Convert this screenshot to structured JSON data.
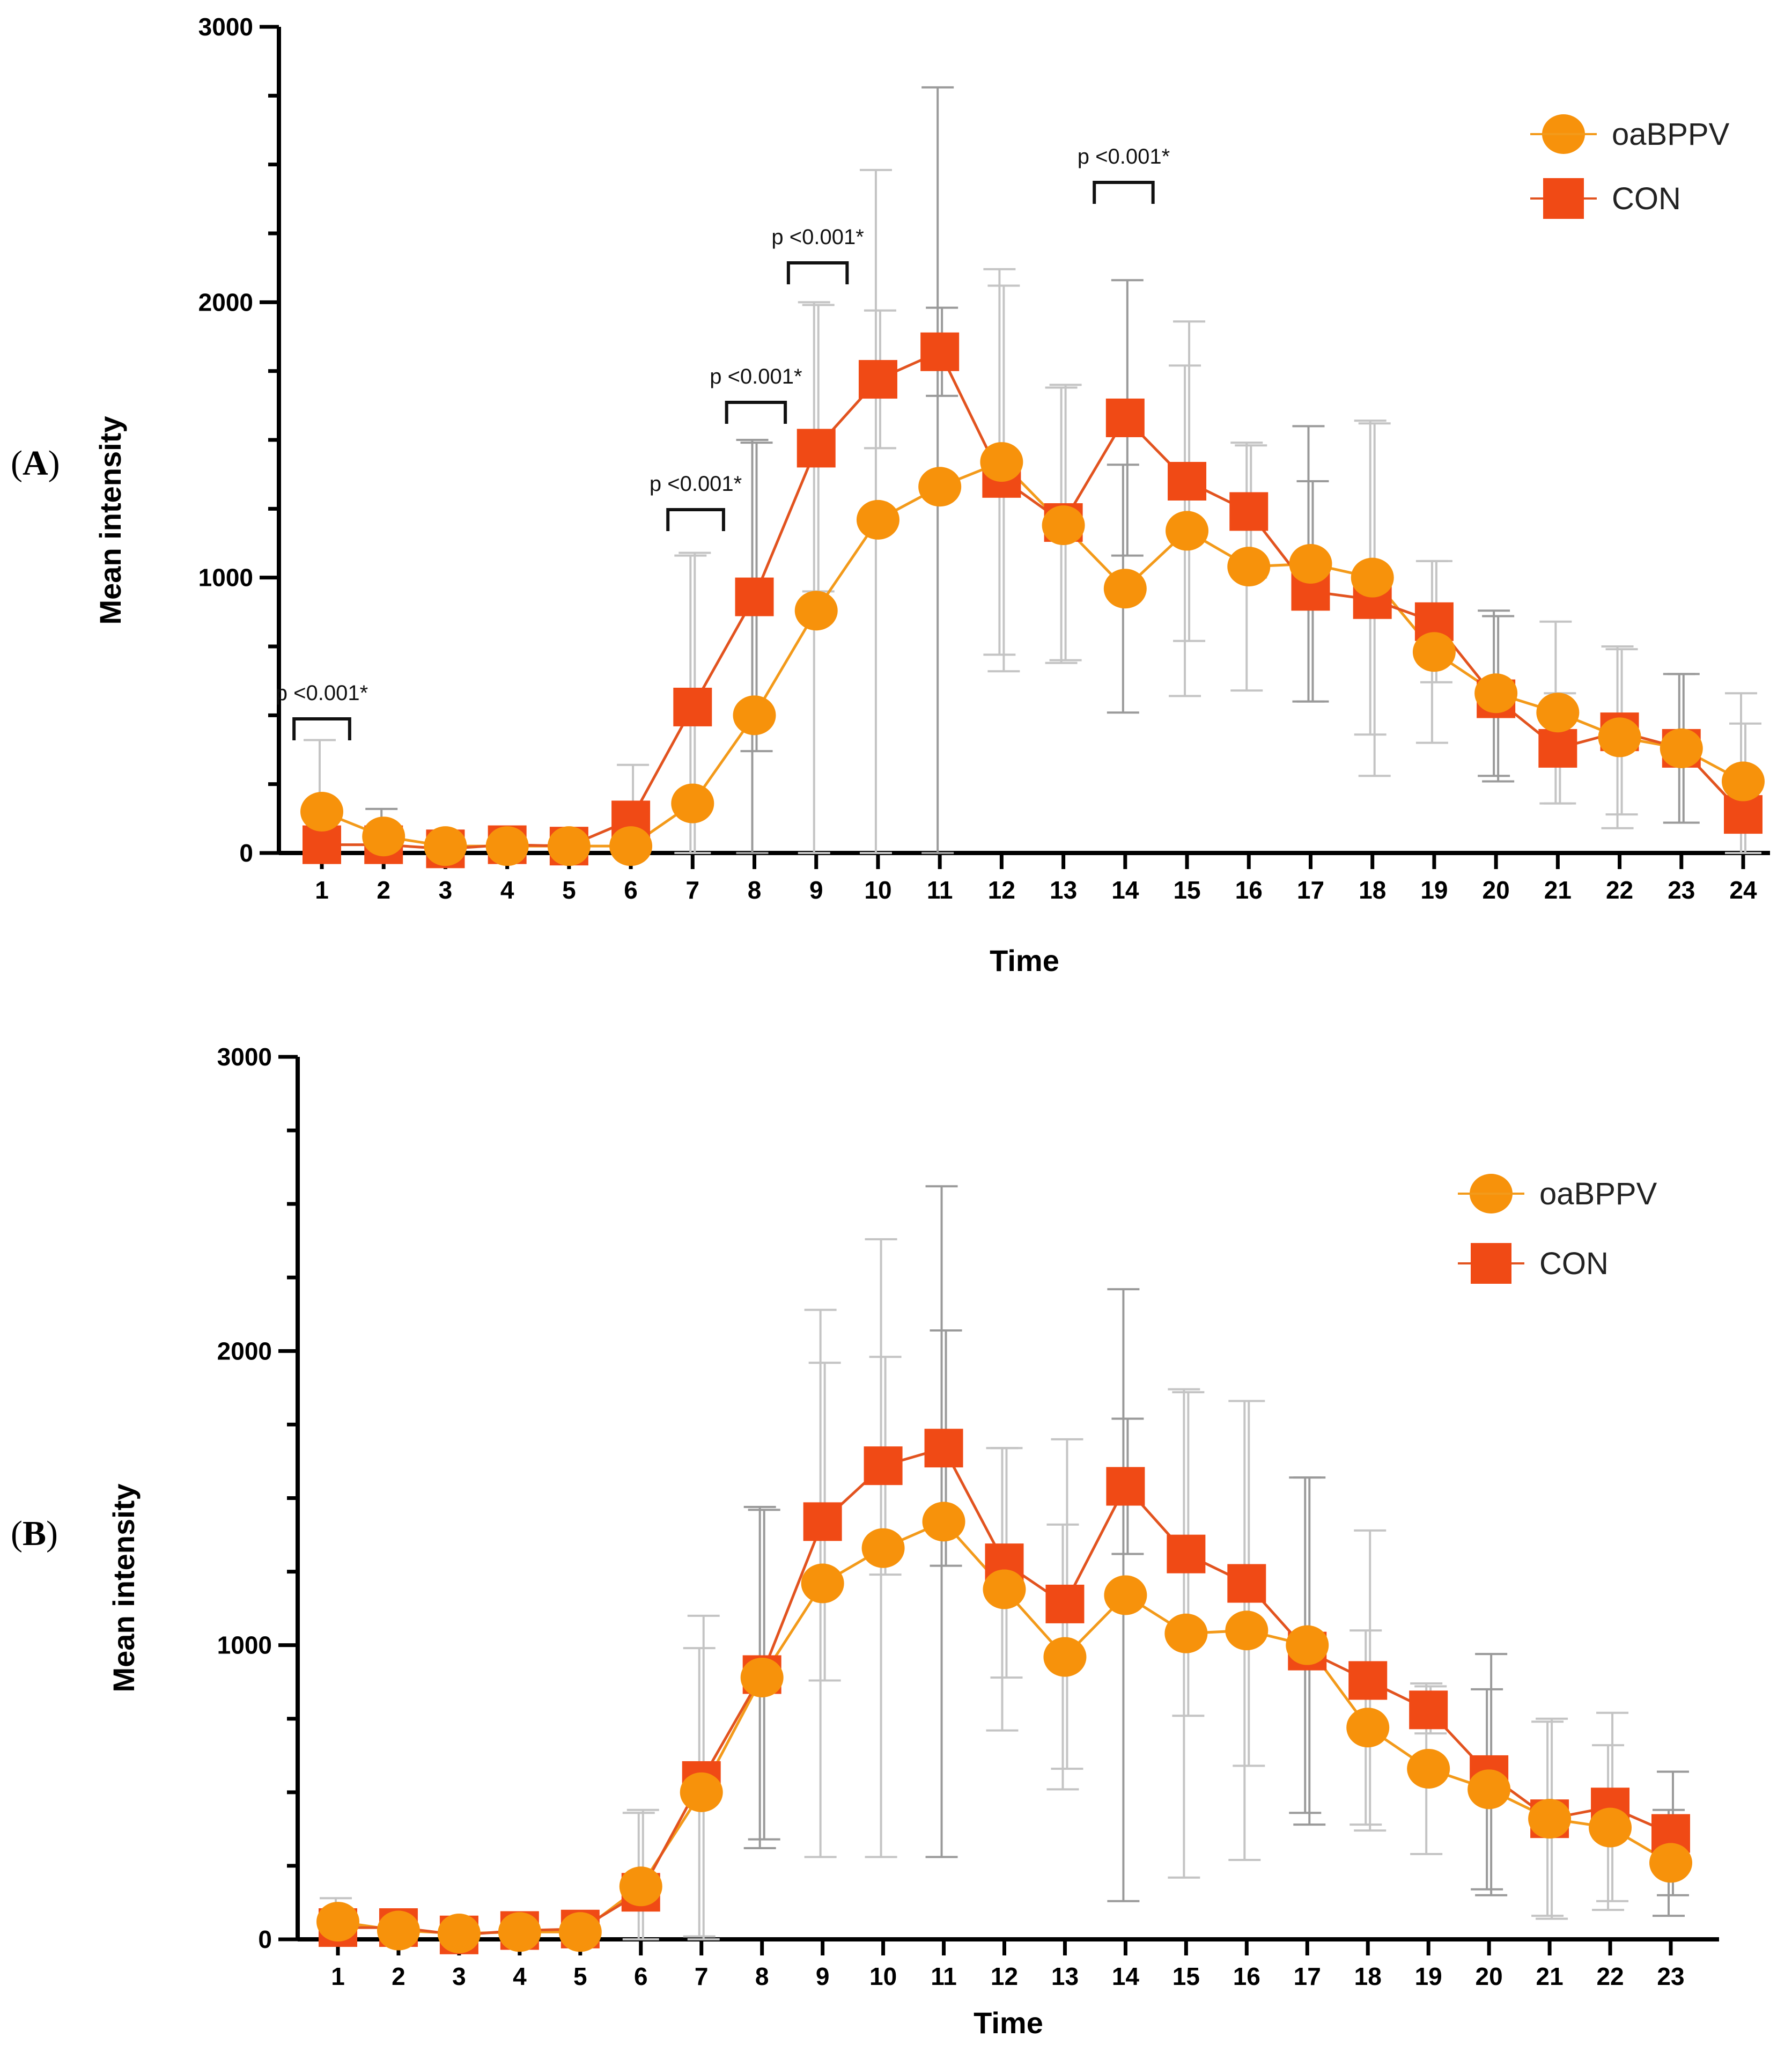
{
  "colors": {
    "oaBPPV": "#f7920b",
    "CON": "#f04a15",
    "oaBPPV_line": "#f39a1a",
    "CON_line": "#e2531f",
    "errorbar": "#c4c4c4"
  },
  "chart_data": [
    {
      "panel_label": "A",
      "type": "line",
      "xlabel": "Time",
      "ylabel": "Mean intensity",
      "ylim": [
        0,
        3000
      ],
      "yticks": [
        0,
        1000,
        2000,
        3000
      ],
      "x": [
        1,
        2,
        3,
        4,
        5,
        6,
        7,
        8,
        9,
        10,
        11,
        12,
        13,
        14,
        15,
        16,
        17,
        18,
        19,
        20,
        21,
        22,
        23,
        24
      ],
      "legend": {
        "position": "top-right",
        "entries": [
          "oaBPPV",
          "CON"
        ]
      },
      "series": [
        {
          "name": "oaBPPV",
          "marker": "circle",
          "values": [
            150,
            60,
            25,
            25,
            25,
            25,
            180,
            500,
            880,
            1210,
            1330,
            1420,
            1190,
            960,
            1170,
            1040,
            1050,
            1000,
            730,
            580,
            510,
            420,
            380,
            260
          ],
          "error": [
            260,
            100,
            30,
            30,
            30,
            30,
            900,
            1000,
            1120,
            1270,
            1450,
            700,
            500,
            450,
            600,
            450,
            500,
            570,
            330,
            300,
            330,
            330,
            270,
            320
          ]
        },
        {
          "name": "CON",
          "marker": "square",
          "values": [
            30,
            30,
            15,
            30,
            25,
            120,
            530,
            930,
            1470,
            1720,
            1820,
            1360,
            1200,
            1580,
            1350,
            1240,
            950,
            920,
            840,
            560,
            380,
            440,
            380,
            140
          ],
          "error": [
            30,
            30,
            20,
            30,
            25,
            200,
            560,
            560,
            520,
            250,
            160,
            700,
            500,
            500,
            580,
            240,
            400,
            640,
            220,
            300,
            200,
            300,
            270,
            330
          ]
        }
      ],
      "annotations": [
        {
          "text": "p <0.001*",
          "x_from": 0.55,
          "x_to": 1.45
        },
        {
          "text": "p <0.001*",
          "x_from": 6.6,
          "x_to": 7.5
        },
        {
          "text": "p <0.001*",
          "x_from": 7.55,
          "x_to": 8.5
        },
        {
          "text": "p <0.001*",
          "x_from": 8.55,
          "x_to": 9.5
        },
        {
          "text": "p <0.001*",
          "x_from": 13.5,
          "x_to": 14.45
        }
      ]
    },
    {
      "panel_label": "B",
      "type": "line",
      "xlabel": "Time",
      "ylabel": "Mean intensity",
      "ylim": [
        0,
        3000
      ],
      "yticks": [
        0,
        1000,
        2000,
        3000
      ],
      "x": [
        1,
        2,
        3,
        4,
        5,
        6,
        7,
        8,
        9,
        10,
        11,
        12,
        13,
        14,
        15,
        16,
        17,
        18,
        19,
        20,
        21,
        22,
        23
      ],
      "legend": {
        "position": "top-right",
        "entries": [
          "oaBPPV",
          "CON"
        ]
      },
      "series": [
        {
          "name": "oaBPPV",
          "marker": "circle",
          "values": [
            60,
            30,
            20,
            25,
            25,
            180,
            500,
            890,
            1210,
            1330,
            1420,
            1190,
            960,
            1170,
            1040,
            1050,
            1000,
            720,
            580,
            510,
            410,
            380,
            260
          ],
          "error": [
            80,
            40,
            25,
            30,
            30,
            250,
            490,
            580,
            930,
            1050,
            1140,
            480,
            450,
            1040,
            830,
            780,
            570,
            330,
            290,
            340,
            330,
            280,
            180
          ]
        },
        {
          "name": "CON",
          "marker": "square",
          "values": [
            40,
            40,
            15,
            30,
            35,
            160,
            540,
            900,
            1420,
            1610,
            1670,
            1280,
            1140,
            1540,
            1310,
            1210,
            980,
            880,
            780,
            560,
            410,
            450,
            360
          ],
          "error": [
            40,
            40,
            20,
            30,
            35,
            280,
            560,
            560,
            540,
            370,
            400,
            390,
            560,
            230,
            550,
            620,
            590,
            510,
            80,
            410,
            340,
            320,
            210
          ]
        }
      ],
      "annotations": []
    }
  ]
}
